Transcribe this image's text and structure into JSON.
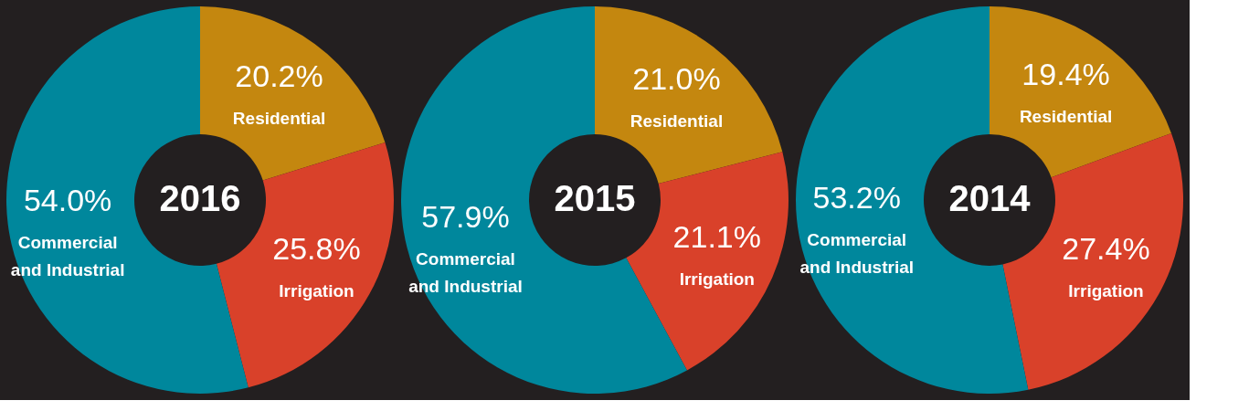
{
  "chart_data": [
    {
      "type": "donut",
      "title": "2016",
      "categories": [
        "Residential",
        "Irrigation",
        "Commercial\nand Industrial"
      ],
      "values": [
        20.2,
        25.8,
        54.0
      ],
      "value_labels": [
        "20.2%",
        "25.8%",
        "54.0%"
      ],
      "colors": [
        "#c4870f",
        "#d9412a",
        "#00879c"
      ],
      "legend": false
    },
    {
      "type": "donut",
      "title": "2015",
      "categories": [
        "Residential",
        "Irrigation",
        "Commercial\nand Industrial"
      ],
      "values": [
        21.0,
        21.1,
        57.9
      ],
      "value_labels": [
        "21.0%",
        "21.1%",
        "57.9%"
      ],
      "colors": [
        "#c4870f",
        "#d9412a",
        "#00879c"
      ],
      "legend": false
    },
    {
      "type": "donut",
      "title": "2014",
      "categories": [
        "Residential",
        "Irrigation",
        "Commercial\nand Industrial"
      ],
      "values": [
        19.4,
        27.4,
        53.2
      ],
      "value_labels": [
        "19.4%",
        "27.4%",
        "53.2%"
      ],
      "colors": [
        "#c4870f",
        "#d9412a",
        "#00879c"
      ],
      "legend": false
    }
  ]
}
